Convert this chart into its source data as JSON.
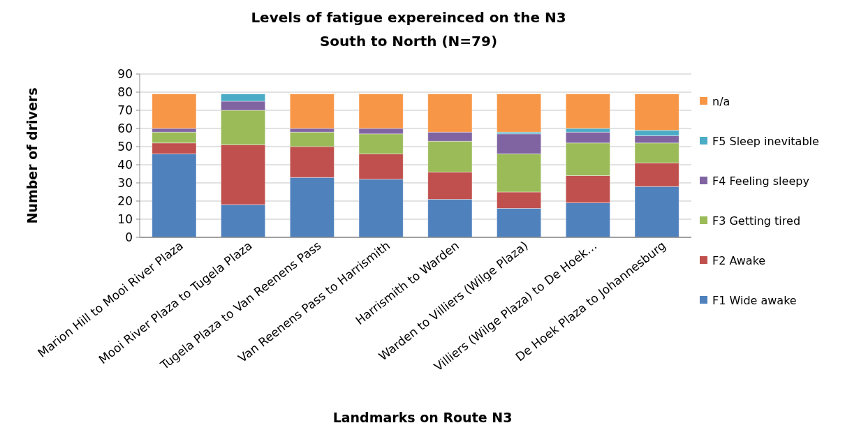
{
  "chart_data": {
    "type": "bar",
    "stacked": true,
    "title": "Levels of fatigue expereinced on the N3",
    "subtitle": "South to North (N=79)",
    "xlabel": "Landmarks on Route N3",
    "ylabel": "Number of drivers",
    "categories": [
      "Marion Hill to Mooi River Plaza",
      "Mooi River Plaza to Tugela Plaza",
      "Tugela Plaza to Van Reenens Pass",
      "Van Reenens Pass to Harrismith",
      "Harrismith to Warden",
      "Warden to Villiers (Wilge Plaza)",
      "Villiers (Wilge Plaza)  to De Hoek…",
      "De Hoek Plaza to Johannesburg"
    ],
    "series": [
      {
        "name": "F1 Wide awake",
        "color": "#4f81bd",
        "values": [
          46,
          18,
          33,
          32,
          21,
          16,
          19,
          28
        ]
      },
      {
        "name": "F2 Awake",
        "color": "#c0504d",
        "values": [
          6,
          33,
          17,
          14,
          15,
          9,
          15,
          13
        ]
      },
      {
        "name": "F3 Getting tired",
        "color": "#9bbb59",
        "values": [
          6,
          19,
          8,
          11,
          17,
          21,
          18,
          11
        ]
      },
      {
        "name": "F4 Feeling sleepy",
        "color": "#8064a2",
        "values": [
          2,
          5,
          2,
          3,
          5,
          11,
          6,
          4
        ]
      },
      {
        "name": "F5 Sleep inevitable",
        "color": "#4bacc6",
        "values": [
          0,
          4,
          0,
          0,
          0,
          1,
          2,
          3
        ]
      },
      {
        "name": "n/a",
        "color": "#f79646",
        "values": [
          19,
          0,
          19,
          19,
          21,
          21,
          19,
          20
        ]
      }
    ],
    "ylim": [
      0,
      90
    ],
    "yticks": [
      0,
      10,
      20,
      30,
      40,
      50,
      60,
      70,
      80,
      90
    ],
    "grid": "y",
    "legend": "right"
  }
}
